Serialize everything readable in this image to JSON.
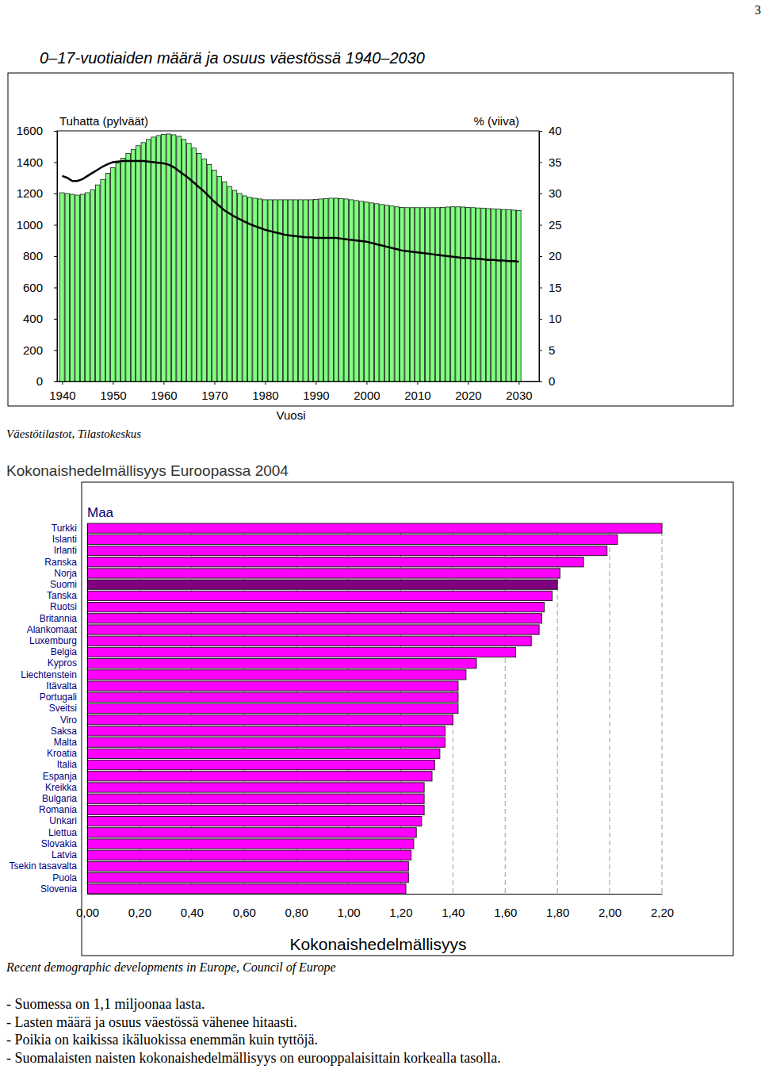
{
  "page_number": "3",
  "chart_data": [
    {
      "type": "bar",
      "title": "0–17-vuotiaiden määrä ja osuus väestössä 1940–2030",
      "y_label": "Tuhatta (pylväät)",
      "y2_label": "% (viiva)",
      "x_label": "Vuosi",
      "source": "Väestötilastot, Tilastokeskus",
      "x": [
        1940,
        1941,
        1942,
        1943,
        1944,
        1945,
        1946,
        1947,
        1948,
        1949,
        1950,
        1951,
        1952,
        1953,
        1954,
        1955,
        1956,
        1957,
        1958,
        1959,
        1960,
        1961,
        1962,
        1963,
        1964,
        1965,
        1966,
        1967,
        1968,
        1969,
        1970,
        1971,
        1972,
        1973,
        1974,
        1975,
        1976,
        1977,
        1978,
        1979,
        1980,
        1981,
        1982,
        1983,
        1984,
        1985,
        1986,
        1987,
        1988,
        1989,
        1990,
        1991,
        1992,
        1993,
        1994,
        1995,
        1996,
        1997,
        1998,
        1999,
        2000,
        2001,
        2002,
        2003,
        2004,
        2005,
        2006,
        2007,
        2008,
        2009,
        2010,
        2011,
        2012,
        2013,
        2014,
        2015,
        2016,
        2017,
        2018,
        2019,
        2020,
        2021,
        2022,
        2023,
        2024,
        2025,
        2026,
        2027,
        2028,
        2029,
        2030
      ],
      "xlim": [
        1939,
        2034
      ],
      "xticks": [
        1940,
        1950,
        1960,
        1970,
        1980,
        1990,
        2000,
        2010,
        2020,
        2030
      ],
      "ylim": [
        0,
        1600
      ],
      "yticks": [
        0,
        200,
        400,
        600,
        800,
        1000,
        1200,
        1400,
        1600
      ],
      "y2lim": [
        0,
        40
      ],
      "y2ticks": [
        0,
        5,
        10,
        15,
        20,
        25,
        30,
        35,
        40
      ],
      "grid": false,
      "series": [
        {
          "type": "bar",
          "color": "#80ff80",
          "values": [
            1205,
            1200,
            1195,
            1190,
            1195,
            1205,
            1225,
            1255,
            1290,
            1330,
            1365,
            1395,
            1425,
            1455,
            1480,
            1505,
            1525,
            1545,
            1560,
            1570,
            1578,
            1580,
            1575,
            1565,
            1545,
            1520,
            1490,
            1455,
            1420,
            1385,
            1350,
            1310,
            1275,
            1245,
            1220,
            1200,
            1185,
            1175,
            1170,
            1165,
            1160,
            1160,
            1160,
            1160,
            1160,
            1160,
            1160,
            1160,
            1160,
            1160,
            1162,
            1165,
            1168,
            1170,
            1170,
            1168,
            1165,
            1160,
            1155,
            1150,
            1145,
            1140,
            1135,
            1130,
            1125,
            1120,
            1115,
            1112,
            1110,
            1110,
            1110,
            1110,
            1110,
            1110,
            1110,
            1112,
            1114,
            1115,
            1115,
            1114,
            1112,
            1110,
            1108,
            1106,
            1104,
            1102,
            1100,
            1098,
            1096,
            1094,
            1092
          ]
        },
        {
          "type": "line",
          "axis": "y2",
          "color": "#000000",
          "values": [
            32.8,
            32.5,
            32.0,
            32.0,
            32.3,
            32.8,
            33.3,
            33.8,
            34.3,
            34.7,
            35.0,
            35.1,
            35.2,
            35.2,
            35.2,
            35.2,
            35.2,
            35.1,
            35.0,
            34.9,
            34.8,
            34.6,
            34.2,
            33.6,
            33.0,
            32.4,
            31.7,
            31.0,
            30.3,
            29.5,
            28.7,
            28.0,
            27.3,
            26.8,
            26.3,
            25.9,
            25.5,
            25.1,
            24.8,
            24.5,
            24.2,
            24.0,
            23.8,
            23.6,
            23.4,
            23.3,
            23.2,
            23.1,
            23.0,
            23.0,
            22.9,
            22.9,
            22.9,
            22.9,
            22.9,
            22.8,
            22.7,
            22.6,
            22.5,
            22.4,
            22.3,
            22.1,
            21.9,
            21.7,
            21.5,
            21.3,
            21.1,
            20.9,
            20.8,
            20.7,
            20.6,
            20.5,
            20.4,
            20.3,
            20.2,
            20.1,
            20.0,
            19.9,
            19.8,
            19.7,
            19.7,
            19.6,
            19.6,
            19.5,
            19.4,
            19.4,
            19.3,
            19.3,
            19.2,
            19.2,
            19.1
          ]
        }
      ]
    },
    {
      "type": "bar",
      "orientation": "horizontal",
      "title": "Kokonaishedelmällisyys Euroopassa 2004",
      "y_label": "Maa",
      "x_label": "Kokonaishedelmällisyys",
      "source": "Recent demographic developments in Europe, Council of Europe",
      "grid": true,
      "categories": [
        "Turkki",
        "Islanti",
        "Irlanti",
        "Ranska",
        "Norja",
        "Suomi",
        "Tanska",
        "Ruotsi",
        "Britannia",
        "Alankomaat",
        "Luxemburg",
        "Belgia",
        "Kypros",
        "Liechtenstein",
        "Itävalta",
        "Portugali",
        "Sveitsi",
        "Viro",
        "Saksa",
        "Malta",
        "Kroatia",
        "Italia",
        "Espanja",
        "Kreikka",
        "Bulgaria",
        "Romania",
        "Unkari",
        "Liettua",
        "Slovakia",
        "Latvia",
        "Tsekin tasavalta",
        "Puola",
        "Slovenia"
      ],
      "values": [
        2.2,
        2.03,
        1.99,
        1.9,
        1.81,
        1.8,
        1.78,
        1.75,
        1.74,
        1.73,
        1.7,
        1.64,
        1.49,
        1.45,
        1.42,
        1.42,
        1.42,
        1.4,
        1.37,
        1.37,
        1.35,
        1.33,
        1.32,
        1.29,
        1.29,
        1.29,
        1.28,
        1.26,
        1.25,
        1.24,
        1.23,
        1.23,
        1.22
      ],
      "colors": [
        "#ff00ff",
        "#ff00ff",
        "#ff00ff",
        "#ff00ff",
        "#ff00ff",
        "#800080",
        "#ff00ff",
        "#ff00ff",
        "#ff00ff",
        "#ff00ff",
        "#ff00ff",
        "#ff00ff",
        "#ff00ff",
        "#ff00ff",
        "#ff00ff",
        "#ff00ff",
        "#ff00ff",
        "#ff00ff",
        "#ff00ff",
        "#ff00ff",
        "#ff00ff",
        "#ff00ff",
        "#ff00ff",
        "#ff00ff",
        "#ff00ff",
        "#ff00ff",
        "#ff00ff",
        "#ff00ff",
        "#ff00ff",
        "#ff00ff",
        "#ff00ff",
        "#ff00ff",
        "#ff00ff"
      ],
      "xlim": [
        0,
        2.2
      ],
      "xticks": [
        {
          "value": 0,
          "label": "0,00"
        },
        {
          "value": 0.2,
          "label": "0,20"
        },
        {
          "value": 0.4,
          "label": "0,40"
        },
        {
          "value": 0.6,
          "label": "0,60"
        },
        {
          "value": 0.8,
          "label": "0,80"
        },
        {
          "value": 1.0,
          "label": "1,00"
        },
        {
          "value": 1.2,
          "label": "1,20"
        },
        {
          "value": 1.4,
          "label": "1,40"
        },
        {
          "value": 1.6,
          "label": "1,60"
        },
        {
          "value": 1.8,
          "label": "1,80"
        },
        {
          "value": 2.0,
          "label": "2,00"
        },
        {
          "value": 2.2,
          "label": "2,20"
        }
      ]
    }
  ],
  "notes": [
    "- Suomessa on 1,1 miljoonaa lasta.",
    "- Lasten määrä ja osuus väestössä vähenee hitaasti.",
    "- Poikia on kaikissa ikäluokissa enemmän kuin tyttöjä.",
    "- Suomalaisten naisten kokonaishedelmällisyys on eurooppalaisittain korkealla tasolla."
  ]
}
